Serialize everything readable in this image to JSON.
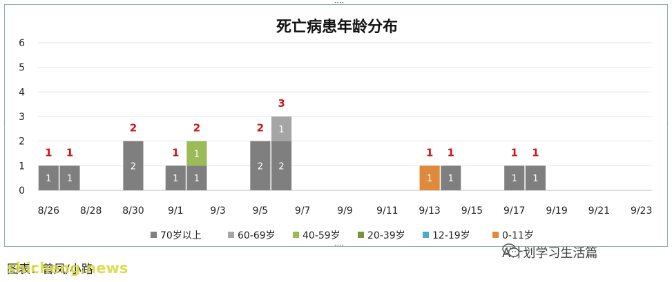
{
  "chart_data": {
    "type": "bar",
    "stacked": true,
    "title": "死亡病患年龄分布",
    "categories": [
      "8/26",
      "8/27",
      "8/28",
      "8/29",
      "8/30",
      "8/31",
      "9/1",
      "9/2",
      "9/3",
      "9/4",
      "9/5",
      "9/6",
      "9/7",
      "9/8",
      "9/9",
      "9/10",
      "9/11",
      "9/12",
      "9/13",
      "9/14",
      "9/15",
      "9/16",
      "9/17",
      "9/18",
      "9/19",
      "9/20",
      "9/21",
      "9/22",
      "9/23"
    ],
    "x_tick_labels": [
      "8/26",
      "8/28",
      "8/30",
      "9/1",
      "9/3",
      "9/5",
      "9/7",
      "9/9",
      "9/11",
      "9/13",
      "9/15",
      "9/17",
      "9/19",
      "9/21",
      "9/23"
    ],
    "ylim": [
      0,
      6
    ],
    "y_ticks": [
      "0",
      "1",
      "2",
      "3",
      "4",
      "5",
      "6"
    ],
    "grid": true,
    "legend_position": "bottom",
    "series": [
      {
        "name": "70岁以上",
        "color": "#7f7f7f",
        "values": [
          1,
          1,
          0,
          0,
          2,
          0,
          1,
          1,
          0,
          0,
          2,
          2,
          0,
          0,
          0,
          0,
          0,
          0,
          0,
          1,
          0,
          0,
          1,
          1,
          0,
          0,
          0,
          0,
          0
        ]
      },
      {
        "name": "60-69岁",
        "color": "#a5a5a5",
        "values": [
          0,
          0,
          0,
          0,
          0,
          0,
          0,
          0,
          0,
          0,
          0,
          1,
          0,
          0,
          0,
          0,
          0,
          0,
          0,
          0,
          0,
          0,
          0,
          0,
          0,
          0,
          0,
          0,
          0
        ]
      },
      {
        "name": "40-59岁",
        "color": "#9bbb59",
        "values": [
          0,
          0,
          0,
          0,
          0,
          0,
          0,
          1,
          0,
          0,
          0,
          0,
          0,
          0,
          0,
          0,
          0,
          0,
          0,
          0,
          0,
          0,
          0,
          0,
          0,
          0,
          0,
          0,
          0
        ]
      },
      {
        "name": "20-39岁",
        "color": "#77933c",
        "values": [
          0,
          0,
          0,
          0,
          0,
          0,
          0,
          0,
          0,
          0,
          0,
          0,
          0,
          0,
          0,
          0,
          0,
          0,
          0,
          0,
          0,
          0,
          0,
          0,
          0,
          0,
          0,
          0,
          0
        ]
      },
      {
        "name": "12-19岁",
        "color": "#4bacc6",
        "values": [
          0,
          0,
          0,
          0,
          0,
          0,
          0,
          0,
          0,
          0,
          0,
          0,
          0,
          0,
          0,
          0,
          0,
          0,
          0,
          0,
          0,
          0,
          0,
          0,
          0,
          0,
          0,
          0,
          0
        ]
      },
      {
        "name": "0-11岁",
        "color": "#dd8a3c",
        "values": [
          0,
          0,
          0,
          0,
          0,
          0,
          0,
          0,
          0,
          0,
          0,
          0,
          0,
          0,
          0,
          0,
          0,
          0,
          1,
          0,
          0,
          0,
          0,
          0,
          0,
          0,
          0,
          0,
          0
        ]
      }
    ],
    "totals": [
      1,
      1,
      0,
      0,
      2,
      0,
      1,
      2,
      0,
      0,
      2,
      3,
      0,
      0,
      0,
      0,
      0,
      0,
      1,
      1,
      0,
      0,
      1,
      1,
      0,
      0,
      0,
      0,
      0
    ]
  },
  "footer": {
    "source_text": "图表：曾凤/小路",
    "watermark": "shicheng.news",
    "wechat_label": "A计划学习生活篇"
  },
  "icons": {
    "wechat": "wechat-icon"
  }
}
